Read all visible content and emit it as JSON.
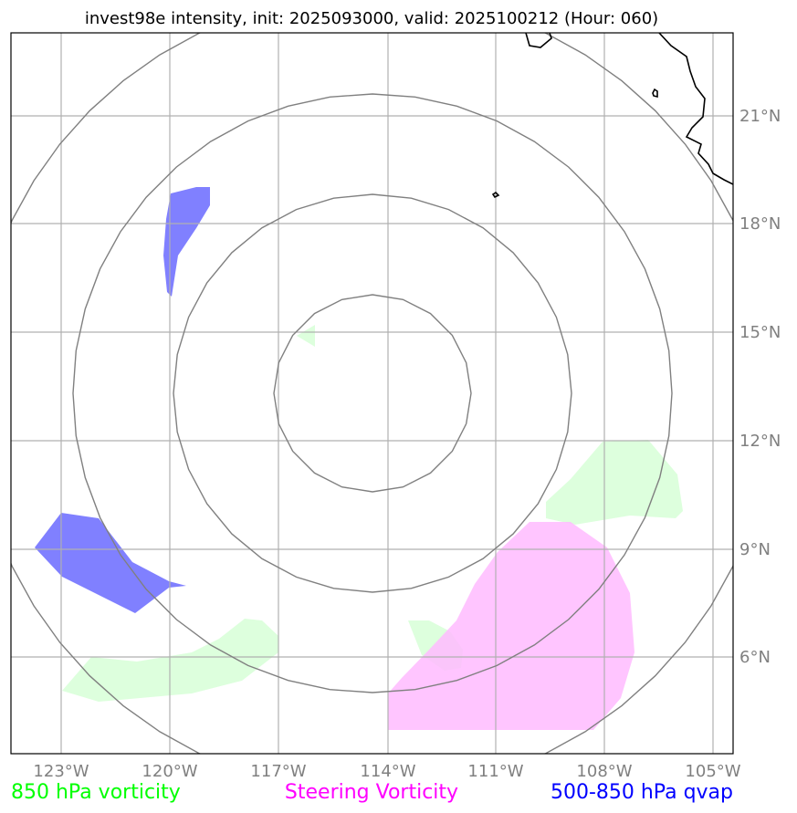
{
  "title": "invest98e intensity, init: 2025093000, valid: 2025100212 (Hour: 060)",
  "axes": {
    "lon_labels": [
      "123°W",
      "120°W",
      "117°W",
      "114°W",
      "111°W",
      "108°W",
      "105°W"
    ],
    "lat_labels": [
      "21°N",
      "18°N",
      "15°N",
      "12°N",
      "9°N",
      "6°N"
    ]
  },
  "legend": {
    "vort850": {
      "label": "850 hPa vorticity",
      "color": "#00ff00"
    },
    "steering": {
      "label": "Steering Vorticity",
      "color": "#ff00ff"
    },
    "qvap": {
      "label": "500-850 hPa qvap",
      "color": "#0000ff"
    }
  },
  "colors": {
    "grid": "#b0b0b0",
    "rings": "#808080",
    "coast": "#000000",
    "vort850_fill": "#ddffdd",
    "steering_fill": "#ffbbff",
    "qvap_fill": "#8080ff"
  }
}
